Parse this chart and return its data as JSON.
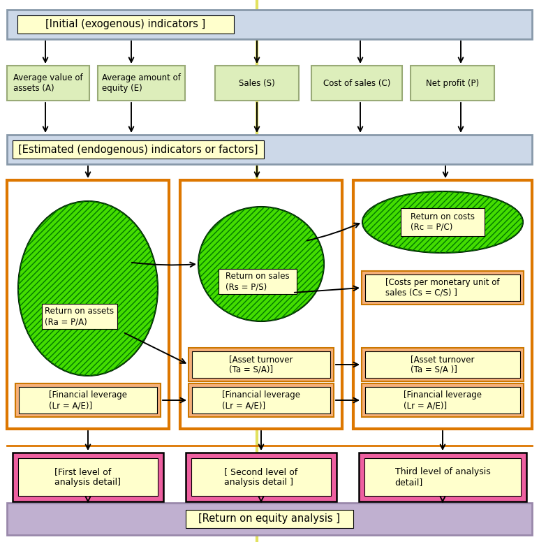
{
  "bg_color": "#ffffff",
  "hdr1_text": "[Initial (exogenous) indicators ]",
  "hdr2_text": "[Estimated (endogenous) indicators or factors]",
  "roe_text": "[Return on equity analysis ]",
  "box_labels": [
    "Average value of\nassets (A)",
    "Average amount of\nequity (E)",
    "Sales (S)",
    "Cost of sales (C)",
    "Net profit (P)"
  ],
  "panel1_ellipse_label": "Return on assets\n(Ra = P/A)",
  "panel2_ellipse_label": "Return on sales\n(Rs = P/S)",
  "panel3_ellipse_label": "Return on costs\n(Rc = P/C)",
  "panel1_fl_label": "[Financial leverage\n(Lr = A/E)]",
  "panel2_at_label": "[Asset turnover\n(Ta = S/A)]",
  "panel2_fl_label": "[Financial leverage\n(Lr = A/E)]",
  "panel3_cs_label": "[Costs per monetary unit of\nsales (Cs = C/S) ]",
  "panel3_at_label": "[Asset turnover\n(Ta = S/A )]",
  "panel3_fl_label": "[Financial leverage\n(Lr = A/E)]",
  "pink1_label": "[First level of\nanalysis detail]",
  "pink2_label": "[ Second level of\nanalysis detail ]",
  "pink3_label": "Third level of analysis\ndetail]",
  "hdr_bg": "#ccd8e8",
  "hdr_edge": "#8899aa",
  "green_box_bg": "#ddeebb",
  "green_box_edge": "#99aa77",
  "orange_panel_edge": "#dd7700",
  "salmon_bg": "#f5b07a",
  "salmon_edge": "#cc7700",
  "green_ellipse_bg": "#44dd00",
  "green_ellipse_edge": "#000000",
  "pink_bg": "#ee60a0",
  "pink_edge": "#000000",
  "roe_bg": "#c0b0d0",
  "roe_edge": "#9988aa",
  "yellow_lbl_bg": "#ffffcc",
  "yellow_lbl_edge": "#000000",
  "yellow_line": "#dddd44"
}
